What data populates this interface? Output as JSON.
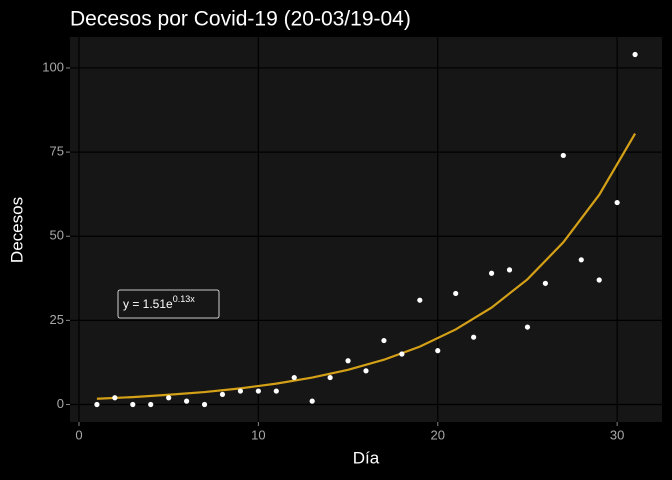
{
  "chart_data": {
    "type": "scatter",
    "title": "Decesos por Covid-19 (20-03/19-04)",
    "x_label": "Día",
    "y_label": "Decesos",
    "xlim": [
      -0.5,
      32.5
    ],
    "ylim": [
      -5.2,
      109.2
    ],
    "xticks": [
      0,
      10,
      20,
      30
    ],
    "yticks": [
      0,
      25,
      50,
      75,
      100
    ],
    "grid": true,
    "points": {
      "color": "#ffffff",
      "x": [
        1,
        2,
        3,
        4,
        5,
        6,
        7,
        8,
        9,
        10,
        11,
        12,
        13,
        14,
        15,
        16,
        17,
        18,
        19,
        20,
        21,
        22,
        23,
        24,
        25,
        26,
        27,
        28,
        29,
        30,
        31
      ],
      "values": [
        0,
        2,
        0,
        0,
        2,
        1,
        0,
        3,
        4,
        4,
        4,
        8,
        1,
        8,
        13,
        10,
        19,
        15,
        31,
        16,
        33,
        20,
        39,
        40,
        23,
        36,
        74,
        43,
        37,
        60,
        104
      ]
    },
    "fit": {
      "color": "#d4a017",
      "x": [
        1,
        3,
        5,
        7,
        9,
        11,
        13,
        15,
        17,
        19,
        21,
        23,
        25,
        27,
        29,
        31
      ],
      "values": [
        1.7,
        2.2,
        2.9,
        3.7,
        4.8,
        6.2,
        8.0,
        10.3,
        13.3,
        17.2,
        22.3,
        28.8,
        37.2,
        48.2,
        62.3,
        80.5
      ]
    },
    "annotation": {
      "text": "y = 1.51e",
      "exponent": "0.13x"
    }
  }
}
